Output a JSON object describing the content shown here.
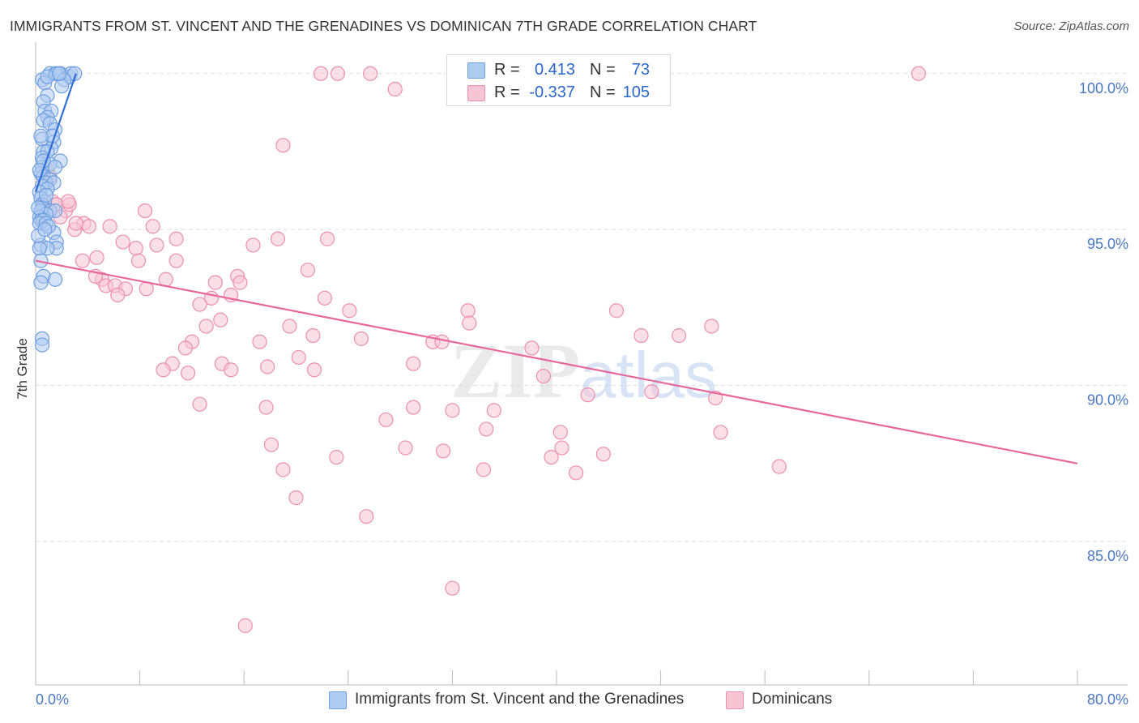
{
  "title": "IMMIGRANTS FROM ST. VINCENT AND THE GRENADINES VS DOMINICAN 7TH GRADE CORRELATION CHART",
  "source": "Source: ZipAtlas.com",
  "watermark": "ZIPatlas",
  "legend": {
    "rows": [
      {
        "r_label": "R =",
        "r_value": "0.413",
        "n_label": "N =",
        "n_value": "73"
      },
      {
        "r_label": "R =",
        "r_value": "-0.337",
        "n_label": "N =",
        "n_value": "105"
      }
    ]
  },
  "bottom_legend": {
    "series_a": "Immigrants from St. Vincent and the Grenadines",
    "series_b": "Dominicans"
  },
  "colors": {
    "blue_fill": "#aecbf0",
    "blue_stroke": "#6f9fe0",
    "blue_line": "#2f6fd6",
    "pink_fill": "#f7c4d4",
    "pink_stroke": "#ea8fae",
    "pink_line": "#e8679a",
    "axis_text": "#4a78c2",
    "value_text": "#2b66c9"
  },
  "chart_data": {
    "type": "scatter",
    "title": "IMMIGRANTS FROM ST. VINCENT AND THE GRENADINES VS DOMINICAN 7TH GRADE CORRELATION CHART",
    "xlabel": "",
    "ylabel": "7th Grade",
    "xlim": [
      0,
      80
    ],
    "ylim": [
      80.4,
      100.8
    ],
    "x_tick_labels": [
      "0.0%",
      "80.0%"
    ],
    "y_ticks": [
      85,
      90,
      95,
      100
    ],
    "y_tick_labels": [
      "85.0%",
      "90.0%",
      "95.0%",
      "100.0%"
    ],
    "grid": "horizontal dashed",
    "legend_position": "top-center",
    "series": [
      {
        "name": "Immigrants from St. Vincent and the Grenadines",
        "color": "blue",
        "trend": {
          "x": [
            0.0,
            3.1
          ],
          "y": [
            96.2,
            100.0
          ]
        },
        "points": [
          [
            1.1,
            100.0
          ],
          [
            1.5,
            100.0
          ],
          [
            1.9,
            100.0
          ],
          [
            2.6,
            99.9
          ],
          [
            2.7,
            100.0
          ],
          [
            0.5,
            99.8
          ],
          [
            0.7,
            99.7
          ],
          [
            1.6,
            100.0
          ],
          [
            0.9,
            99.3
          ],
          [
            0.6,
            99.1
          ],
          [
            0.7,
            98.8
          ],
          [
            1.2,
            98.8
          ],
          [
            0.9,
            98.6
          ],
          [
            0.6,
            98.5
          ],
          [
            1.1,
            98.4
          ],
          [
            1.5,
            98.2
          ],
          [
            0.5,
            97.9
          ],
          [
            1.4,
            97.8
          ],
          [
            1.2,
            97.6
          ],
          [
            0.6,
            97.5
          ],
          [
            0.9,
            97.5
          ],
          [
            0.5,
            97.3
          ],
          [
            1.9,
            97.2
          ],
          [
            1.1,
            97.1
          ],
          [
            0.5,
            97.0
          ],
          [
            1.5,
            97.0
          ],
          [
            0.4,
            96.8
          ],
          [
            0.6,
            96.7
          ],
          [
            1.1,
            96.6
          ],
          [
            0.8,
            96.5
          ],
          [
            1.4,
            96.5
          ],
          [
            0.5,
            96.4
          ],
          [
            0.9,
            96.3
          ],
          [
            0.3,
            96.2
          ],
          [
            0.4,
            96.0
          ],
          [
            0.7,
            95.9
          ],
          [
            0.5,
            95.8
          ],
          [
            0.5,
            95.7
          ],
          [
            1.1,
            95.6
          ],
          [
            0.4,
            95.6
          ],
          [
            1.5,
            95.6
          ],
          [
            0.8,
            95.5
          ],
          [
            0.3,
            95.4
          ],
          [
            0.4,
            95.3
          ],
          [
            0.6,
            95.3
          ],
          [
            0.3,
            95.2
          ],
          [
            0.8,
            95.2
          ],
          [
            1.4,
            94.9
          ],
          [
            1.6,
            94.6
          ],
          [
            0.4,
            94.5
          ],
          [
            1.6,
            94.4
          ],
          [
            0.9,
            94.4
          ],
          [
            0.3,
            94.4
          ],
          [
            0.4,
            94.0
          ],
          [
            0.6,
            93.5
          ],
          [
            1.5,
            93.4
          ],
          [
            0.4,
            93.3
          ],
          [
            0.5,
            91.5
          ],
          [
            0.5,
            91.3
          ],
          [
            3.0,
            100.0
          ],
          [
            2.2,
            99.8
          ],
          [
            0.8,
            96.1
          ],
          [
            1.0,
            95.1
          ],
          [
            0.2,
            95.7
          ],
          [
            0.6,
            97.2
          ],
          [
            1.3,
            98.0
          ],
          [
            0.9,
            99.9
          ],
          [
            2.0,
            99.6
          ],
          [
            0.2,
            94.8
          ],
          [
            0.4,
            98.0
          ],
          [
            0.7,
            95.0
          ],
          [
            1.8,
            100.0
          ],
          [
            0.3,
            96.9
          ]
        ]
      },
      {
        "name": "Dominicans",
        "color": "pink",
        "trend": {
          "x": [
            0.0,
            80.0
          ],
          "y": [
            94.0,
            87.5
          ]
        },
        "points": [
          [
            21.9,
            100.0
          ],
          [
            23.2,
            100.0
          ],
          [
            25.7,
            100.0
          ],
          [
            32.6,
            100.0
          ],
          [
            44.5,
            100.0
          ],
          [
            67.8,
            100.0
          ],
          [
            27.6,
            99.5
          ],
          [
            19.0,
            97.7
          ],
          [
            0.9,
            96.9
          ],
          [
            1.1,
            96.7
          ],
          [
            1.3,
            95.9
          ],
          [
            1.6,
            95.8
          ],
          [
            2.3,
            95.6
          ],
          [
            2.6,
            95.8
          ],
          [
            1.9,
            95.4
          ],
          [
            8.4,
            95.6
          ],
          [
            3.7,
            95.2
          ],
          [
            4.1,
            95.1
          ],
          [
            5.7,
            95.1
          ],
          [
            9.0,
            95.1
          ],
          [
            3.0,
            95.0
          ],
          [
            10.8,
            94.7
          ],
          [
            18.6,
            94.7
          ],
          [
            22.4,
            94.7
          ],
          [
            6.7,
            94.6
          ],
          [
            9.3,
            94.5
          ],
          [
            16.7,
            94.5
          ],
          [
            7.7,
            94.4
          ],
          [
            4.7,
            94.1
          ],
          [
            7.9,
            94.0
          ],
          [
            10.8,
            94.0
          ],
          [
            3.6,
            94.0
          ],
          [
            20.9,
            93.7
          ],
          [
            15.5,
            93.5
          ],
          [
            5.1,
            93.4
          ],
          [
            10.0,
            93.4
          ],
          [
            13.8,
            93.3
          ],
          [
            15.7,
            93.3
          ],
          [
            5.4,
            93.2
          ],
          [
            6.1,
            93.2
          ],
          [
            8.5,
            93.1
          ],
          [
            6.9,
            93.1
          ],
          [
            15.0,
            92.9
          ],
          [
            6.3,
            92.9
          ],
          [
            13.5,
            92.8
          ],
          [
            22.2,
            92.8
          ],
          [
            12.6,
            92.6
          ],
          [
            24.1,
            92.4
          ],
          [
            33.2,
            92.4
          ],
          [
            44.6,
            92.4
          ],
          [
            14.2,
            92.1
          ],
          [
            33.3,
            92.0
          ],
          [
            13.1,
            91.9
          ],
          [
            19.5,
            91.9
          ],
          [
            21.3,
            91.6
          ],
          [
            46.5,
            91.6
          ],
          [
            49.4,
            91.6
          ],
          [
            12.0,
            91.4
          ],
          [
            25.0,
            91.5
          ],
          [
            17.2,
            91.4
          ],
          [
            30.5,
            91.4
          ],
          [
            31.2,
            91.4
          ],
          [
            11.5,
            91.2
          ],
          [
            38.1,
            91.2
          ],
          [
            51.9,
            91.9
          ],
          [
            20.2,
            90.9
          ],
          [
            10.5,
            90.7
          ],
          [
            14.3,
            90.7
          ],
          [
            17.8,
            90.6
          ],
          [
            29.0,
            90.7
          ],
          [
            9.8,
            90.5
          ],
          [
            15.0,
            90.5
          ],
          [
            11.7,
            90.4
          ],
          [
            21.4,
            90.5
          ],
          [
            39.0,
            90.3
          ],
          [
            42.4,
            89.7
          ],
          [
            47.3,
            89.8
          ],
          [
            52.2,
            89.6
          ],
          [
            12.6,
            89.4
          ],
          [
            17.7,
            89.3
          ],
          [
            29.0,
            89.3
          ],
          [
            32.0,
            89.2
          ],
          [
            35.2,
            89.2
          ],
          [
            26.9,
            88.9
          ],
          [
            34.6,
            88.6
          ],
          [
            40.3,
            88.5
          ],
          [
            52.6,
            88.5
          ],
          [
            18.1,
            88.1
          ],
          [
            28.4,
            88.0
          ],
          [
            31.3,
            87.9
          ],
          [
            40.4,
            88.0
          ],
          [
            43.6,
            87.8
          ],
          [
            23.1,
            87.7
          ],
          [
            39.6,
            87.7
          ],
          [
            19.0,
            87.3
          ],
          [
            34.4,
            87.3
          ],
          [
            41.5,
            87.2
          ],
          [
            57.1,
            87.4
          ],
          [
            20.0,
            86.4
          ],
          [
            25.4,
            85.8
          ],
          [
            32.0,
            83.5
          ],
          [
            16.1,
            82.3
          ],
          [
            2.5,
            95.9
          ],
          [
            3.1,
            95.2
          ],
          [
            4.6,
            93.5
          ]
        ]
      }
    ]
  }
}
